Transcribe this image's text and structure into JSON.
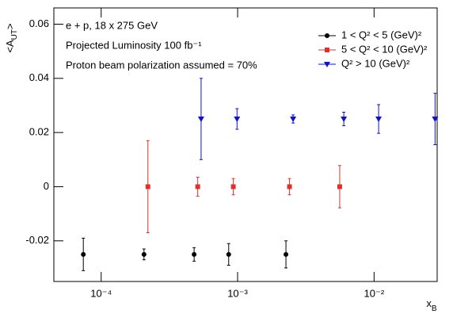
{
  "chart_data": {
    "type": "errorbar",
    "x_label": {
      "main": "x",
      "sub": "B"
    },
    "y_label": {
      "main": "<A",
      "sub": "UT",
      "end": ">"
    },
    "annotations": [
      "e + p, 18 x 275 GeV",
      "Projected Luminosity 100 fb⁻¹",
      "Proton beam polarization assumed = 70%"
    ],
    "xscale": "log",
    "xlim": [
      4.5e-05,
      0.029
    ],
    "ylim": [
      -0.035,
      0.066
    ],
    "xticks": [
      {
        "value": 0.0001,
        "label": "10⁻⁴"
      },
      {
        "value": 0.001,
        "label": "10⁻³"
      },
      {
        "value": 0.01,
        "label": "10⁻²"
      }
    ],
    "yticks": [
      -0.02,
      0,
      0.02,
      0.04,
      0.06
    ],
    "legend": "upper right",
    "series": [
      {
        "name": "1 < Q² < 5 (GeV)²",
        "color": "#000000",
        "marker": "circle",
        "x": [
          7.4e-05,
          0.000206,
          0.00048,
          0.00086,
          0.00226
        ],
        "values": [
          -0.025,
          -0.025,
          -0.025,
          -0.025,
          -0.025
        ],
        "errors": [
          0.006,
          0.002,
          0.0025,
          0.004,
          0.005
        ]
      },
      {
        "name": "5 < Q² < 10 (GeV)²",
        "color": "#e0302a",
        "marker": "square",
        "x": [
          0.00022,
          0.00051,
          0.00093,
          0.0024,
          0.0056
        ],
        "values": [
          0,
          0,
          0,
          0,
          0
        ],
        "errors": [
          0.017,
          0.0035,
          0.003,
          0.003,
          0.0078
        ]
      },
      {
        "name": "Q² > 10 (GeV)²",
        "color": "#1010d0",
        "marker": "triangle-down",
        "x": [
          0.00054,
          0.00099,
          0.00255,
          0.006,
          0.0108,
          0.028
        ],
        "values": [
          0.025,
          0.025,
          0.025,
          0.025,
          0.025,
          0.025
        ],
        "errors": [
          0.015,
          0.0038,
          0.0015,
          0.0025,
          0.0053,
          0.0095
        ]
      }
    ]
  }
}
